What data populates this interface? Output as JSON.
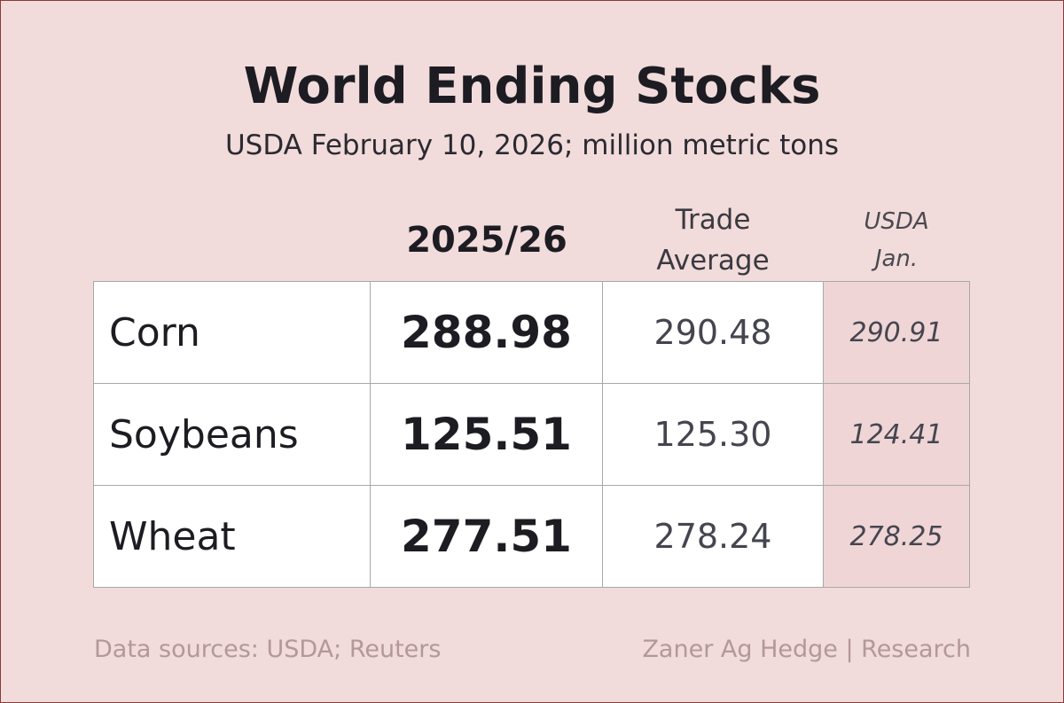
{
  "header": {
    "title": "World Ending Stocks",
    "subtitle": "USDA February 10, 2026; million metric tons"
  },
  "table": {
    "columns": [
      "2025/26",
      "Trade Average",
      "USDA Jan."
    ],
    "rows": [
      [
        "Corn",
        "288.98",
        "290.48",
        "290.91"
      ],
      [
        "Soybeans",
        "125.51",
        "125.30",
        "124.41"
      ],
      [
        "Wheat",
        "277.51",
        "278.24",
        "278.25"
      ]
    ]
  },
  "footer": {
    "sources": "Data sources: USDA; Reuters",
    "credit": "Zaner Ag Hedge | Research"
  }
}
